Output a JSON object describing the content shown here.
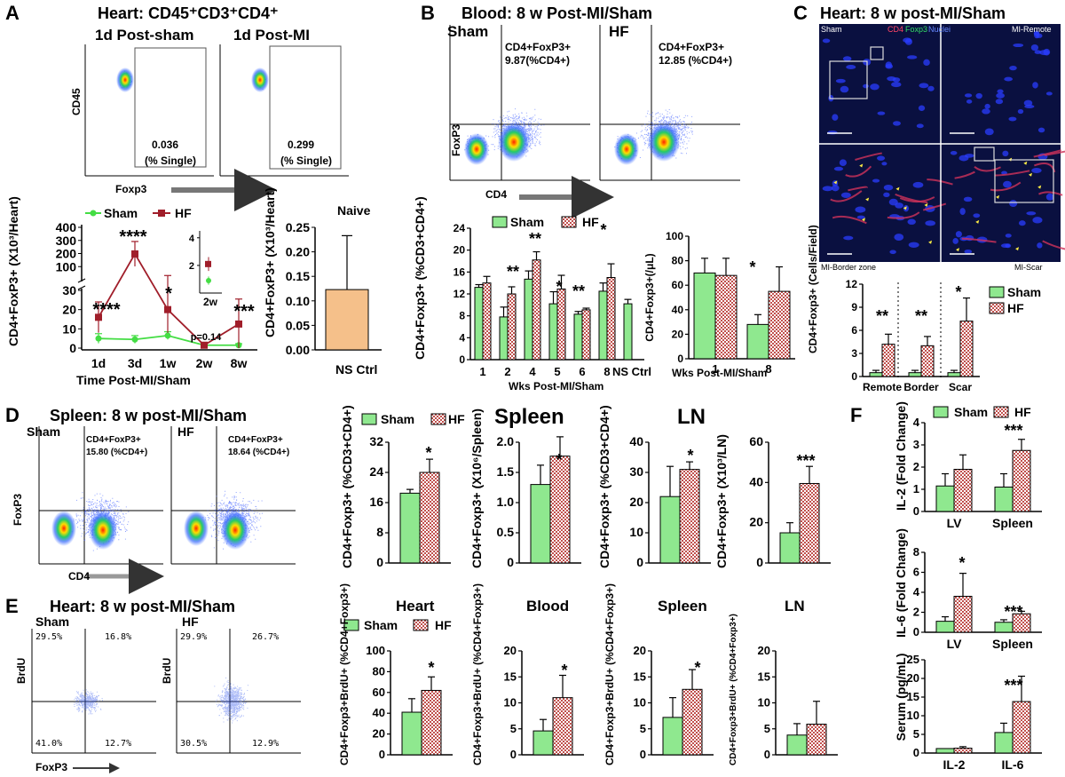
{
  "panels": {
    "A": "A",
    "B": "B",
    "C": "C",
    "D": "D",
    "E": "E",
    "F": "F"
  },
  "headings": {
    "A": "Heart: CD45⁺CD3⁺CD4⁺",
    "B": "Blood: 8 w Post-MI/Sham",
    "C": "Heart: 8 w post-MI/Sham",
    "D": "Spleen: 8 w post-MI/Sham",
    "E": "Heart: 8 w post-MI/Sham"
  },
  "flow": {
    "a_left_title": "1d Post-sham",
    "a_right_title": "1d Post-MI",
    "a_y": "CD45",
    "a_x": "Foxp3",
    "a_left_val": "0.036",
    "a_left_unit": "(% Single)",
    "a_right_val": "0.299",
    "a_right_unit": "(% Single)",
    "b_left_title": "Sham",
    "b_right_title": "HF",
    "b_y": "FoxP3",
    "b_x": "CD4",
    "b_left_g1": "CD4+FoxP3+",
    "b_left_g2": "9.87(%CD4+)",
    "b_right_g1": "CD4+FoxP3+",
    "b_right_g2": "12.85 (%CD4+)",
    "d_left_title": "Sham",
    "d_right_title": "HF",
    "d_y": "FoxP3",
    "d_x": "CD4",
    "d_left_g1": "CD4+FoxP3+",
    "d_left_g2": "15.80 (%CD4+)",
    "d_right_g1": "CD4+FoxP3+",
    "d_right_g2": "18.64 (%CD4+)",
    "e_left_title": "Sham",
    "e_right_title": "HF",
    "e_y": "BrdU",
    "e_x": "FoxP3",
    "e_left_q": [
      "29.5%",
      "16.8%",
      "41.0%",
      "12.7%"
    ],
    "e_right_q": [
      "29.9%",
      "26.7%",
      "30.5%",
      "12.9%"
    ]
  },
  "micro": {
    "sham": "Sham",
    "cd4": "CD4",
    "foxp3": "Foxp3",
    "nuclei": "Nuclei",
    "remote": "MI-Remote",
    "border": "MI-Border  zone",
    "scar": "MI-Scar"
  },
  "group_titles": {
    "naive": "Naive",
    "spleen": "Spleen",
    "ln": "LN",
    "e_heart": "Heart",
    "e_blood": "Blood",
    "e_spleen": "Spleen",
    "e_ln": "LN"
  },
  "legend": {
    "sham": "Sham",
    "hf": "HF"
  },
  "colors": {
    "sham": "#8fe88f",
    "hf": "#c0504d",
    "sham_line": "#44dd44",
    "hf_line": "#a01e2a",
    "naive": "#f5c08a"
  },
  "chart_data": [
    {
      "id": "A-time",
      "type": "line",
      "title": "",
      "ylabel": "CD4+FoxP3+ (X10³/Heart)",
      "xlabel": "Time Post-MI/Sham",
      "categories": [
        "1d",
        "3d",
        "1w",
        "2w",
        "8w"
      ],
      "y_ticks_upper": [
        "100",
        "200",
        "300",
        "400"
      ],
      "y_ticks_lower": [
        "0",
        "10",
        "20",
        "30"
      ],
      "series": [
        {
          "name": "Sham",
          "values": [
            5,
            4.5,
            6.5,
            1.5,
            1.5
          ],
          "err": [
            2.5,
            2,
            2,
            0.8,
            0.8
          ]
        },
        {
          "name": "HF",
          "values": [
            16,
            197,
            20,
            1.5,
            12.5
          ],
          "err": [
            8,
            95,
            12,
            1,
            13
          ]
        }
      ],
      "annotations": [
        "****",
        "****",
        "*",
        "***",
        "p=0.14"
      ],
      "inset": {
        "label": "2w",
        "ticks": [
          "2",
          "4"
        ],
        "sham": 0.9,
        "sham_err": 0.3,
        "hf": 2.1,
        "hf_err": 0.5
      }
    },
    {
      "id": "A-naive",
      "type": "bar",
      "title": "Naive",
      "ylabel": "CD4+FoxP3+ (X10³/Heart)",
      "categories": [
        "NS Ctrl"
      ],
      "values": [
        0.123
      ],
      "err": [
        0.11
      ],
      "ylim": [
        0,
        0.25
      ],
      "y_ticks": [
        "0.00",
        "0.05",
        "0.10",
        "0.15",
        "0.20",
        "0.25"
      ]
    },
    {
      "id": "B-percent",
      "type": "bar",
      "ylabel": "CD4+Foxp3+ (%CD3+CD4+)",
      "xlabel": "Wks Post-MI/Sham",
      "categories": [
        "1",
        "2",
        "4",
        "5",
        "6",
        "8",
        "NS Ctrl"
      ],
      "ylim": [
        0,
        24
      ],
      "y_ticks": [
        "0",
        "4",
        "8",
        "12",
        "16",
        "20",
        "24"
      ],
      "series": [
        {
          "name": "Sham",
          "values": [
            13.2,
            7.8,
            14.7,
            10.2,
            8.3,
            12.5,
            10.2
          ],
          "err": [
            0.5,
            1.8,
            1.5,
            2.2,
            0.5,
            1.5,
            0.8
          ]
        },
        {
          "name": "HF",
          "values": [
            14,
            12,
            18.2,
            12.9,
            9.1,
            15,
            null
          ],
          "err": [
            1.2,
            1.3,
            1.5,
            2.5,
            0.3,
            2.5,
            null
          ]
        }
      ],
      "annotations": [
        "**",
        "**",
        "*",
        "**",
        "*"
      ]
    },
    {
      "id": "B-count",
      "type": "bar",
      "ylabel": "CD4+Foxp3+(/μL)",
      "xlabel": "Wks Post-MI/Sham",
      "categories": [
        "1",
        "8"
      ],
      "ylim": [
        0,
        100
      ],
      "y_ticks": [
        "0",
        "20",
        "40",
        "60",
        "80",
        "100"
      ],
      "series": [
        {
          "name": "Sham",
          "values": [
            70,
            28
          ],
          "err": [
            12,
            8
          ]
        },
        {
          "name": "HF",
          "values": [
            68,
            55
          ],
          "err": [
            14,
            20
          ]
        }
      ],
      "annotations": [
        "*"
      ]
    },
    {
      "id": "C-cells",
      "type": "bar",
      "ylabel": "CD4+Foxp3+ (Cells/Field)",
      "categories": [
        "Remote",
        "Border",
        "Scar"
      ],
      "ylim": [
        0,
        12
      ],
      "y_ticks": [
        "0",
        "3",
        "6",
        "9",
        "12"
      ],
      "series": [
        {
          "name": "Sham",
          "values": [
            0.5,
            0.5,
            0.5
          ],
          "err": [
            0.3,
            0.3,
            0.3
          ]
        },
        {
          "name": "HF",
          "values": [
            4.2,
            4,
            7.2
          ],
          "err": [
            1.3,
            1.2,
            3
          ]
        }
      ],
      "annotations": [
        "**",
        "**",
        "*"
      ]
    },
    {
      "id": "D-spleen-pct",
      "type": "bar",
      "ylabel": "CD4+Foxp3+ (%CD3+CD4+)",
      "ylim": [
        0,
        32
      ],
      "y_ticks": [
        "0",
        "8",
        "16",
        "24",
        "32"
      ],
      "series": [
        {
          "name": "Sham",
          "values": [
            18.5
          ],
          "err": [
            1
          ]
        },
        {
          "name": "HF",
          "values": [
            24
          ],
          "err": [
            3.5
          ]
        }
      ],
      "annotations": [
        "*"
      ]
    },
    {
      "id": "D-spleen-count",
      "type": "bar",
      "ylabel": "CD4+Foxp3+ (X10⁶/Spleen)",
      "ylim": [
        0,
        2
      ],
      "y_ticks": [
        "0",
        "0.5",
        "1.0",
        "1.5",
        "2.0"
      ],
      "series": [
        {
          "name": "Sham",
          "values": [
            1.3
          ],
          "err": [
            0.32
          ]
        },
        {
          "name": "HF",
          "values": [
            1.77
          ],
          "err": [
            0.32
          ]
        }
      ],
      "annotations": [
        "*"
      ]
    },
    {
      "id": "D-ln-pct",
      "type": "bar",
      "ylabel": "CD4+Foxp3+ (%CD3+CD4+)",
      "ylim": [
        0,
        40
      ],
      "y_ticks": [
        "0",
        "10",
        "20",
        "30",
        "40"
      ],
      "series": [
        {
          "name": "Sham",
          "values": [
            22
          ],
          "err": [
            10
          ]
        },
        {
          "name": "HF",
          "values": [
            31
          ],
          "err": [
            2.5
          ]
        }
      ],
      "annotations": [
        "*"
      ]
    },
    {
      "id": "D-ln-count",
      "type": "bar",
      "ylabel": "CD4+Foxp3+ (X10³/LN)",
      "ylim": [
        0,
        60
      ],
      "y_ticks": [
        "0",
        "20",
        "40",
        "60"
      ],
      "series": [
        {
          "name": "Sham",
          "values": [
            15
          ],
          "err": [
            5
          ]
        },
        {
          "name": "HF",
          "values": [
            39.5
          ],
          "err": [
            8.5
          ]
        }
      ],
      "annotations": [
        "***"
      ]
    },
    {
      "id": "E-heart",
      "type": "bar",
      "title": "Heart",
      "ylabel": "CD4+Foxp3+BrdU+ (%CD4+Foxp3+)",
      "ylim": [
        0,
        100
      ],
      "y_ticks": [
        "0",
        "20",
        "40",
        "60",
        "80",
        "100"
      ],
      "series": [
        {
          "name": "Sham",
          "values": [
            41
          ],
          "err": [
            13
          ]
        },
        {
          "name": "HF",
          "values": [
            62
          ],
          "err": [
            13
          ]
        }
      ],
      "annotations": [
        "*"
      ]
    },
    {
      "id": "E-blood",
      "type": "bar",
      "title": "Blood",
      "ylabel": "CD4+Foxp3+BrdU+ (%CD4+Foxp3+)",
      "ylim": [
        0,
        20
      ],
      "y_ticks": [
        "0",
        "5",
        "10",
        "15",
        "20"
      ],
      "series": [
        {
          "name": "Sham",
          "values": [
            4.6
          ],
          "err": [
            2.2
          ]
        },
        {
          "name": "HF",
          "values": [
            11
          ],
          "err": [
            4.3
          ]
        }
      ],
      "annotations": [
        "*"
      ]
    },
    {
      "id": "E-spleen",
      "type": "bar",
      "title": "Spleen",
      "ylabel": "CD4+Foxp3+BrdU+ (%CD4+Foxp3+)",
      "ylim": [
        0,
        20
      ],
      "y_ticks": [
        "0",
        "5",
        "10",
        "15",
        "20"
      ],
      "series": [
        {
          "name": "Sham",
          "values": [
            7.2
          ],
          "err": [
            3.8
          ]
        },
        {
          "name": "HF",
          "values": [
            12.6
          ],
          "err": [
            3.8
          ]
        }
      ],
      "annotations": [
        "*"
      ]
    },
    {
      "id": "E-ln",
      "type": "bar",
      "title": "LN",
      "ylabel": "CD4+Foxp3+BrdU+ (%CD4+Foxp3+)",
      "ylim": [
        0,
        20
      ],
      "y_ticks": [
        "0",
        "5",
        "10",
        "15",
        "20"
      ],
      "series": [
        {
          "name": "Sham",
          "values": [
            3.8
          ],
          "err": [
            2.2
          ]
        },
        {
          "name": "HF",
          "values": [
            5.9
          ],
          "err": [
            4.4
          ]
        }
      ],
      "annotations": []
    },
    {
      "id": "F-il2",
      "type": "bar",
      "ylabel": "IL-2 (Fold Change)",
      "categories": [
        "LV",
        "Spleen"
      ],
      "ylim": [
        0,
        4
      ],
      "y_ticks": [
        "0",
        "1",
        "2",
        "3",
        "4"
      ],
      "series": [
        {
          "name": "Sham",
          "values": [
            1.15,
            1.1
          ],
          "err": [
            0.55,
            0.6
          ]
        },
        {
          "name": "HF",
          "values": [
            1.9,
            2.75
          ],
          "err": [
            0.65,
            0.5
          ]
        }
      ],
      "annotations": [
        "***"
      ]
    },
    {
      "id": "F-il6",
      "type": "bar",
      "ylabel": "IL-6 (Fold Change)",
      "categories": [
        "LV",
        "Spleen"
      ],
      "ylim": [
        0,
        8
      ],
      "y_ticks": [
        "0",
        "2",
        "4",
        "6",
        "8"
      ],
      "series": [
        {
          "name": "Sham",
          "values": [
            1.1,
            1
          ],
          "err": [
            0.45,
            0.25
          ]
        },
        {
          "name": "HF",
          "values": [
            3.6,
            1.85
          ],
          "err": [
            2.3,
            0.25
          ]
        }
      ],
      "annotations": [
        "*",
        "***"
      ]
    },
    {
      "id": "F-serum",
      "type": "bar",
      "ylabel": "Serum (pg/mL)",
      "categories": [
        "IL-2",
        "IL-6"
      ],
      "ylim": [
        0,
        25
      ],
      "y_ticks": [
        "0",
        "5",
        "10",
        "15",
        "20",
        "25"
      ],
      "series": [
        {
          "name": "Sham",
          "values": [
            1.2,
            5.5
          ],
          "err": [
            0,
            2.5
          ]
        },
        {
          "name": "HF",
          "values": [
            1.3,
            13.8
          ],
          "err": [
            0.4,
            6.8
          ]
        }
      ],
      "annotations": [
        "***"
      ]
    }
  ]
}
